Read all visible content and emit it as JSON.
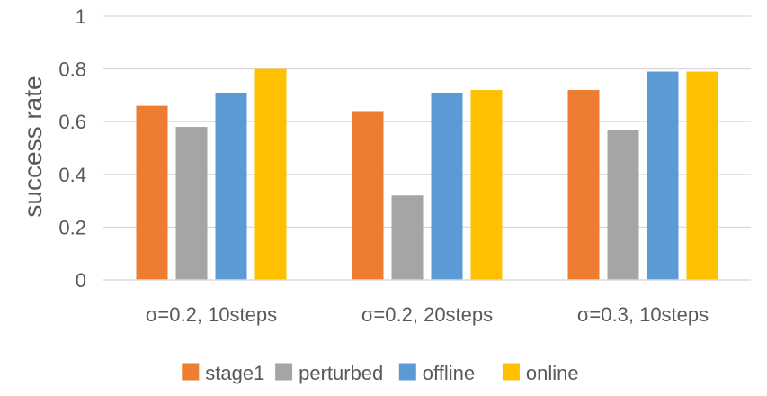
{
  "chart_data": {
    "type": "bar",
    "title": "",
    "xlabel": "",
    "ylabel": "success rate",
    "ylim": [
      0,
      1
    ],
    "yticks": [
      "0",
      "0.2",
      "0.4",
      "0.6",
      "0.8",
      "1"
    ],
    "grid": true,
    "legend_position": "bottom",
    "categories": [
      "σ=0.2, 10steps",
      "σ=0.2, 20steps",
      "σ=0.3, 10steps"
    ],
    "series": [
      {
        "name": "stage1",
        "color": "#ED7D31",
        "values": [
          0.66,
          0.64,
          0.72
        ]
      },
      {
        "name": "perturbed",
        "color": "#A5A5A5",
        "values": [
          0.58,
          0.32,
          0.57
        ]
      },
      {
        "name": "offline",
        "color": "#5B9BD5",
        "values": [
          0.71,
          0.71,
          0.79
        ]
      },
      {
        "name": "online",
        "color": "#FFC000",
        "values": [
          0.8,
          0.72,
          0.79
        ]
      }
    ]
  }
}
